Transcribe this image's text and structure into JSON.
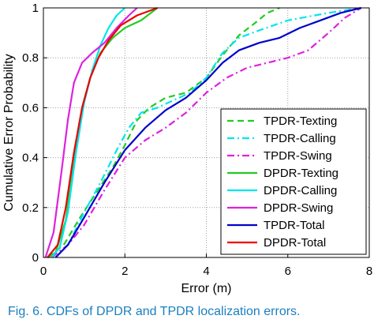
{
  "chart_data": {
    "type": "line",
    "xlabel": "Error (m)",
    "ylabel": "Cumulative Error Probability",
    "xlim": [
      0,
      8
    ],
    "ylim": [
      0,
      1
    ],
    "x_ticks": [
      0,
      2,
      4,
      6,
      8
    ],
    "y_ticks": [
      0,
      0.2,
      0.4,
      0.6,
      0.8,
      1
    ],
    "y_tick_labels": [
      "0",
      "0.2",
      "0.4",
      "0.6",
      "0.8",
      "1"
    ],
    "x_tick_labels": [
      "0",
      "2",
      "4",
      "6",
      "8"
    ],
    "grid": true,
    "legend_position": "bottom-right",
    "series": [
      {
        "name": "TPDR-Texting",
        "color": "#22cc22",
        "dash": "dashed",
        "points": [
          [
            0.1,
            0
          ],
          [
            0.5,
            0.05
          ],
          [
            0.9,
            0.16
          ],
          [
            1.3,
            0.26
          ],
          [
            1.7,
            0.36
          ],
          [
            2.0,
            0.45
          ],
          [
            2.3,
            0.55
          ],
          [
            2.6,
            0.6
          ],
          [
            3.0,
            0.64
          ],
          [
            3.5,
            0.66
          ],
          [
            4.0,
            0.72
          ],
          [
            4.4,
            0.81
          ],
          [
            4.8,
            0.89
          ],
          [
            5.2,
            0.94
          ],
          [
            5.5,
            0.98
          ],
          [
            5.8,
            1.0
          ]
        ]
      },
      {
        "name": "TPDR-Calling",
        "color": "#00e5ee",
        "dash": "dashdot",
        "points": [
          [
            0.3,
            0
          ],
          [
            0.6,
            0.05
          ],
          [
            1.0,
            0.18
          ],
          [
            1.4,
            0.3
          ],
          [
            1.8,
            0.43
          ],
          [
            2.1,
            0.52
          ],
          [
            2.4,
            0.58
          ],
          [
            2.8,
            0.6
          ],
          [
            3.2,
            0.63
          ],
          [
            3.6,
            0.66
          ],
          [
            4.0,
            0.72
          ],
          [
            4.4,
            0.82
          ],
          [
            4.8,
            0.88
          ],
          [
            5.3,
            0.91
          ],
          [
            6.0,
            0.95
          ],
          [
            7.0,
            0.98
          ],
          [
            7.8,
            1.0
          ]
        ]
      },
      {
        "name": "TPDR-Swing",
        "color": "#dd22dd",
        "dash": "dashdot",
        "points": [
          [
            0.2,
            0
          ],
          [
            0.6,
            0.05
          ],
          [
            1.0,
            0.13
          ],
          [
            1.5,
            0.27
          ],
          [
            2.0,
            0.4
          ],
          [
            2.5,
            0.47
          ],
          [
            3.0,
            0.52
          ],
          [
            3.5,
            0.58
          ],
          [
            4.0,
            0.66
          ],
          [
            4.5,
            0.72
          ],
          [
            5.0,
            0.76
          ],
          [
            5.5,
            0.78
          ],
          [
            6.0,
            0.8
          ],
          [
            6.5,
            0.83
          ],
          [
            7.0,
            0.9
          ],
          [
            7.4,
            0.96
          ],
          [
            7.8,
            1.0
          ]
        ]
      },
      {
        "name": "DPDR-Texting",
        "color": "#22cc22",
        "dash": "solid",
        "points": [
          [
            0.1,
            0
          ],
          [
            0.3,
            0.02
          ],
          [
            0.55,
            0.15
          ],
          [
            0.75,
            0.38
          ],
          [
            0.95,
            0.6
          ],
          [
            1.15,
            0.72
          ],
          [
            1.4,
            0.82
          ],
          [
            1.7,
            0.88
          ],
          [
            2.0,
            0.92
          ],
          [
            2.4,
            0.95
          ],
          [
            2.8,
            1.0
          ]
        ]
      },
      {
        "name": "DPDR-Calling",
        "color": "#00e5ee",
        "dash": "solid",
        "points": [
          [
            0.2,
            0
          ],
          [
            0.4,
            0.04
          ],
          [
            0.6,
            0.18
          ],
          [
            0.8,
            0.42
          ],
          [
            1.0,
            0.62
          ],
          [
            1.2,
            0.75
          ],
          [
            1.4,
            0.85
          ],
          [
            1.6,
            0.92
          ],
          [
            1.8,
            0.97
          ],
          [
            2.0,
            1.0
          ]
        ]
      },
      {
        "name": "DPDR-Swing",
        "color": "#dd22dd",
        "dash": "solid",
        "points": [
          [
            0.05,
            0
          ],
          [
            0.25,
            0.1
          ],
          [
            0.45,
            0.35
          ],
          [
            0.6,
            0.55
          ],
          [
            0.75,
            0.7
          ],
          [
            0.95,
            0.78
          ],
          [
            1.2,
            0.82
          ],
          [
            1.5,
            0.86
          ],
          [
            1.8,
            0.92
          ],
          [
            2.1,
            0.97
          ],
          [
            2.3,
            1.0
          ]
        ]
      },
      {
        "name": "TPDR-Total",
        "color": "#0000cc",
        "dash": "solid",
        "points": [
          [
            0.3,
            0
          ],
          [
            0.6,
            0.05
          ],
          [
            1.0,
            0.16
          ],
          [
            1.5,
            0.3
          ],
          [
            2.0,
            0.43
          ],
          [
            2.5,
            0.52
          ],
          [
            3.0,
            0.59
          ],
          [
            3.5,
            0.64
          ],
          [
            4.0,
            0.71
          ],
          [
            4.4,
            0.78
          ],
          [
            4.8,
            0.83
          ],
          [
            5.3,
            0.86
          ],
          [
            5.8,
            0.88
          ],
          [
            6.3,
            0.92
          ],
          [
            6.8,
            0.95
          ],
          [
            7.3,
            0.98
          ],
          [
            7.8,
            1.0
          ]
        ]
      },
      {
        "name": "DPDR-Total",
        "color": "#ee0000",
        "dash": "solid",
        "points": [
          [
            0.1,
            0
          ],
          [
            0.35,
            0.05
          ],
          [
            0.55,
            0.2
          ],
          [
            0.75,
            0.42
          ],
          [
            0.95,
            0.6
          ],
          [
            1.15,
            0.72
          ],
          [
            1.35,
            0.8
          ],
          [
            1.6,
            0.87
          ],
          [
            1.9,
            0.93
          ],
          [
            2.3,
            0.97
          ],
          [
            2.8,
            1.0
          ]
        ]
      }
    ]
  },
  "caption": {
    "label": "Fig. 6.",
    "text": "CDFs of DPDR and TPDR localization errors."
  }
}
